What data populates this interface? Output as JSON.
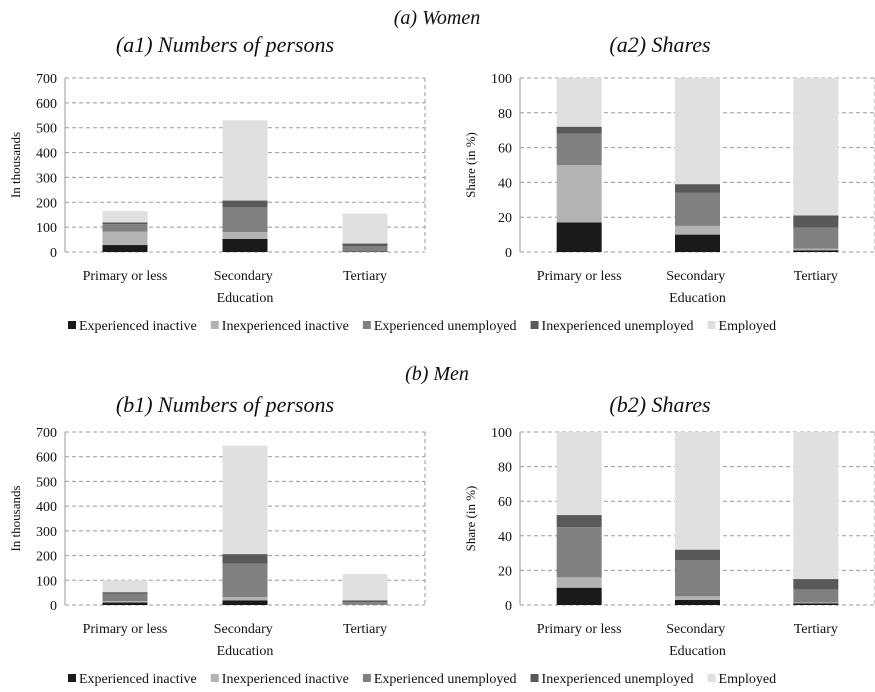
{
  "sections": [
    {
      "title": "(a) Women"
    },
    {
      "title": "(b) Men"
    }
  ],
  "chart_data": [
    {
      "type": "bar",
      "stacked": true,
      "title": "(a1) Numbers of persons",
      "ylabel": "In thousands",
      "categories": [
        "Primary or less",
        "Secondary Education",
        "Tertiary"
      ],
      "series": [
        {
          "name": "Experienced inactive",
          "color": "#1a1a1a",
          "values": [
            28,
            53,
            2
          ]
        },
        {
          "name": "Inexperienced inactive",
          "color": "#b3b3b3",
          "values": [
            54,
            27,
            2
          ]
        },
        {
          "name": "Experienced unemployed",
          "color": "#808080",
          "values": [
            30,
            101,
            19
          ]
        },
        {
          "name": "Inexperienced unemployed",
          "color": "#595959",
          "values": [
            7,
            26,
            11
          ]
        },
        {
          "name": "Employed",
          "color": "#e0e0e0",
          "values": [
            46,
            323,
            121
          ]
        }
      ],
      "ylim": [
        0,
        700
      ],
      "yticks": [
        0,
        100,
        200,
        300,
        400,
        500,
        600,
        700
      ],
      "grid": true
    },
    {
      "type": "bar",
      "stacked": true,
      "title": "(a2) Shares",
      "ylabel": "Share (in %)",
      "categories": [
        "Primary or less",
        "Secondary Education",
        "Tertiary"
      ],
      "series": [
        {
          "name": "Experienced inactive",
          "color": "#1a1a1a",
          "values": [
            17,
            10,
            1
          ]
        },
        {
          "name": "Inexperienced inactive",
          "color": "#b3b3b3",
          "values": [
            33,
            5,
            1
          ]
        },
        {
          "name": "Experienced unemployed",
          "color": "#808080",
          "values": [
            18,
            19,
            12
          ]
        },
        {
          "name": "Inexperienced unemployed",
          "color": "#595959",
          "values": [
            4,
            5,
            7
          ]
        },
        {
          "name": "Employed",
          "color": "#e0e0e0",
          "values": [
            28,
            61,
            79
          ]
        }
      ],
      "ylim": [
        0,
        100
      ],
      "yticks": [
        0,
        20,
        40,
        60,
        80,
        100
      ],
      "grid": true
    },
    {
      "type": "bar",
      "stacked": true,
      "title": "(b1) Numbers of persons",
      "ylabel": "In thousands",
      "categories": [
        "Primary or less",
        "Secondary Education",
        "Tertiary"
      ],
      "series": [
        {
          "name": "Experienced inactive",
          "color": "#1a1a1a",
          "values": [
            10,
            19,
            1
          ]
        },
        {
          "name": "Inexperienced inactive",
          "color": "#b3b3b3",
          "values": [
            6,
            13,
            1
          ]
        },
        {
          "name": "Experienced unemployed",
          "color": "#808080",
          "values": [
            29,
            135,
            9
          ]
        },
        {
          "name": "Inexperienced unemployed",
          "color": "#595959",
          "values": [
            7,
            39,
            8
          ]
        },
        {
          "name": "Employed",
          "color": "#e0e0e0",
          "values": [
            48,
            439,
            106
          ]
        }
      ],
      "ylim": [
        0,
        700
      ],
      "yticks": [
        0,
        100,
        200,
        300,
        400,
        500,
        600,
        700
      ],
      "grid": true
    },
    {
      "type": "bar",
      "stacked": true,
      "title": "(b2) Shares",
      "ylabel": "Share (in %)",
      "categories": [
        "Primary or less",
        "Secondary Education",
        "Tertiary"
      ],
      "series": [
        {
          "name": "Experienced inactive",
          "color": "#1a1a1a",
          "values": [
            10,
            3,
            1
          ]
        },
        {
          "name": "Inexperienced inactive",
          "color": "#b3b3b3",
          "values": [
            6,
            2,
            0.5
          ]
        },
        {
          "name": "Experienced unemployed",
          "color": "#808080",
          "values": [
            29,
            21,
            7.5
          ]
        },
        {
          "name": "Inexperienced unemployed",
          "color": "#595959",
          "values": [
            7,
            6,
            6
          ]
        },
        {
          "name": "Employed",
          "color": "#e0e0e0",
          "values": [
            48,
            68,
            85
          ]
        }
      ],
      "ylim": [
        0,
        100
      ],
      "yticks": [
        0,
        20,
        40,
        60,
        80,
        100
      ],
      "grid": true
    }
  ]
}
